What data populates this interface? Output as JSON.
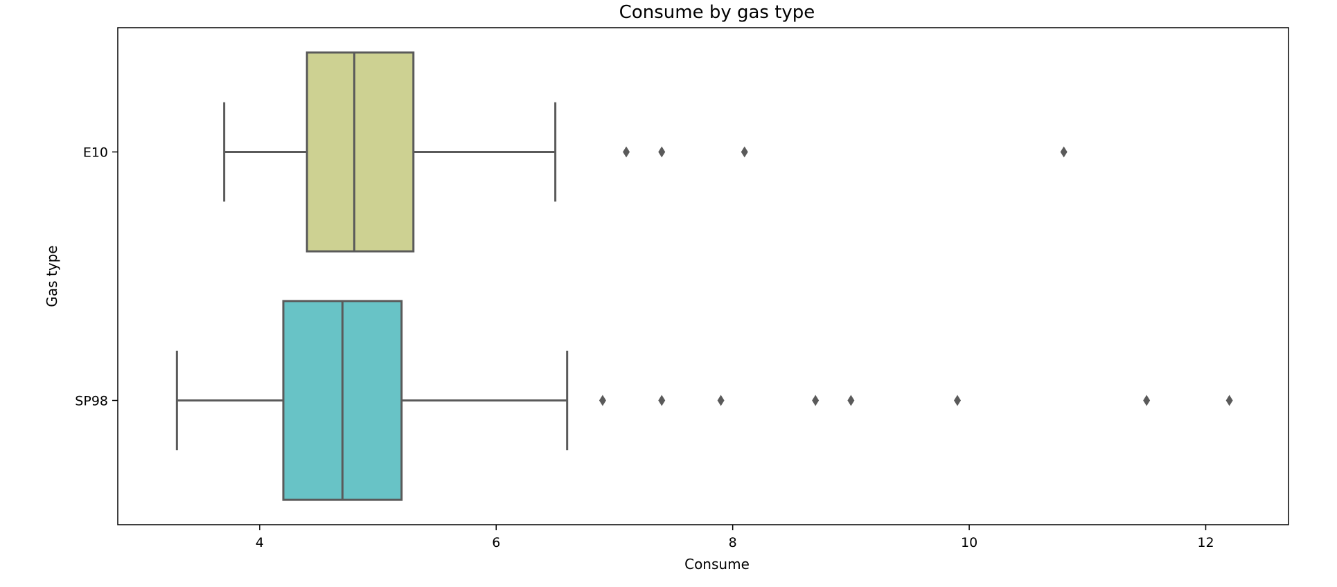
{
  "chart_data": {
    "type": "box",
    "orientation": "horizontal",
    "title": "Consume by gas type",
    "xlabel": "Consume",
    "ylabel": "Gas type",
    "xlim": [
      2.8,
      12.7
    ],
    "xticks": [
      4,
      6,
      8,
      10,
      12
    ],
    "grid": false,
    "categories": [
      "E10",
      "SP98"
    ],
    "boxes": [
      {
        "category": "E10",
        "color": "#cdd192",
        "whisker_low": 3.7,
        "q1": 4.4,
        "median": 4.8,
        "q3": 5.3,
        "whisker_high": 6.5,
        "outliers": [
          7.1,
          7.4,
          8.1,
          10.8
        ]
      },
      {
        "category": "SP98",
        "color": "#68c3c6",
        "whisker_low": 3.3,
        "q1": 4.2,
        "median": 4.7,
        "q3": 5.2,
        "whisker_high": 6.6,
        "outliers": [
          6.9,
          7.4,
          7.9,
          8.7,
          9.0,
          9.9,
          11.5,
          12.2
        ]
      }
    ],
    "line_color": "#5a5a5a"
  }
}
